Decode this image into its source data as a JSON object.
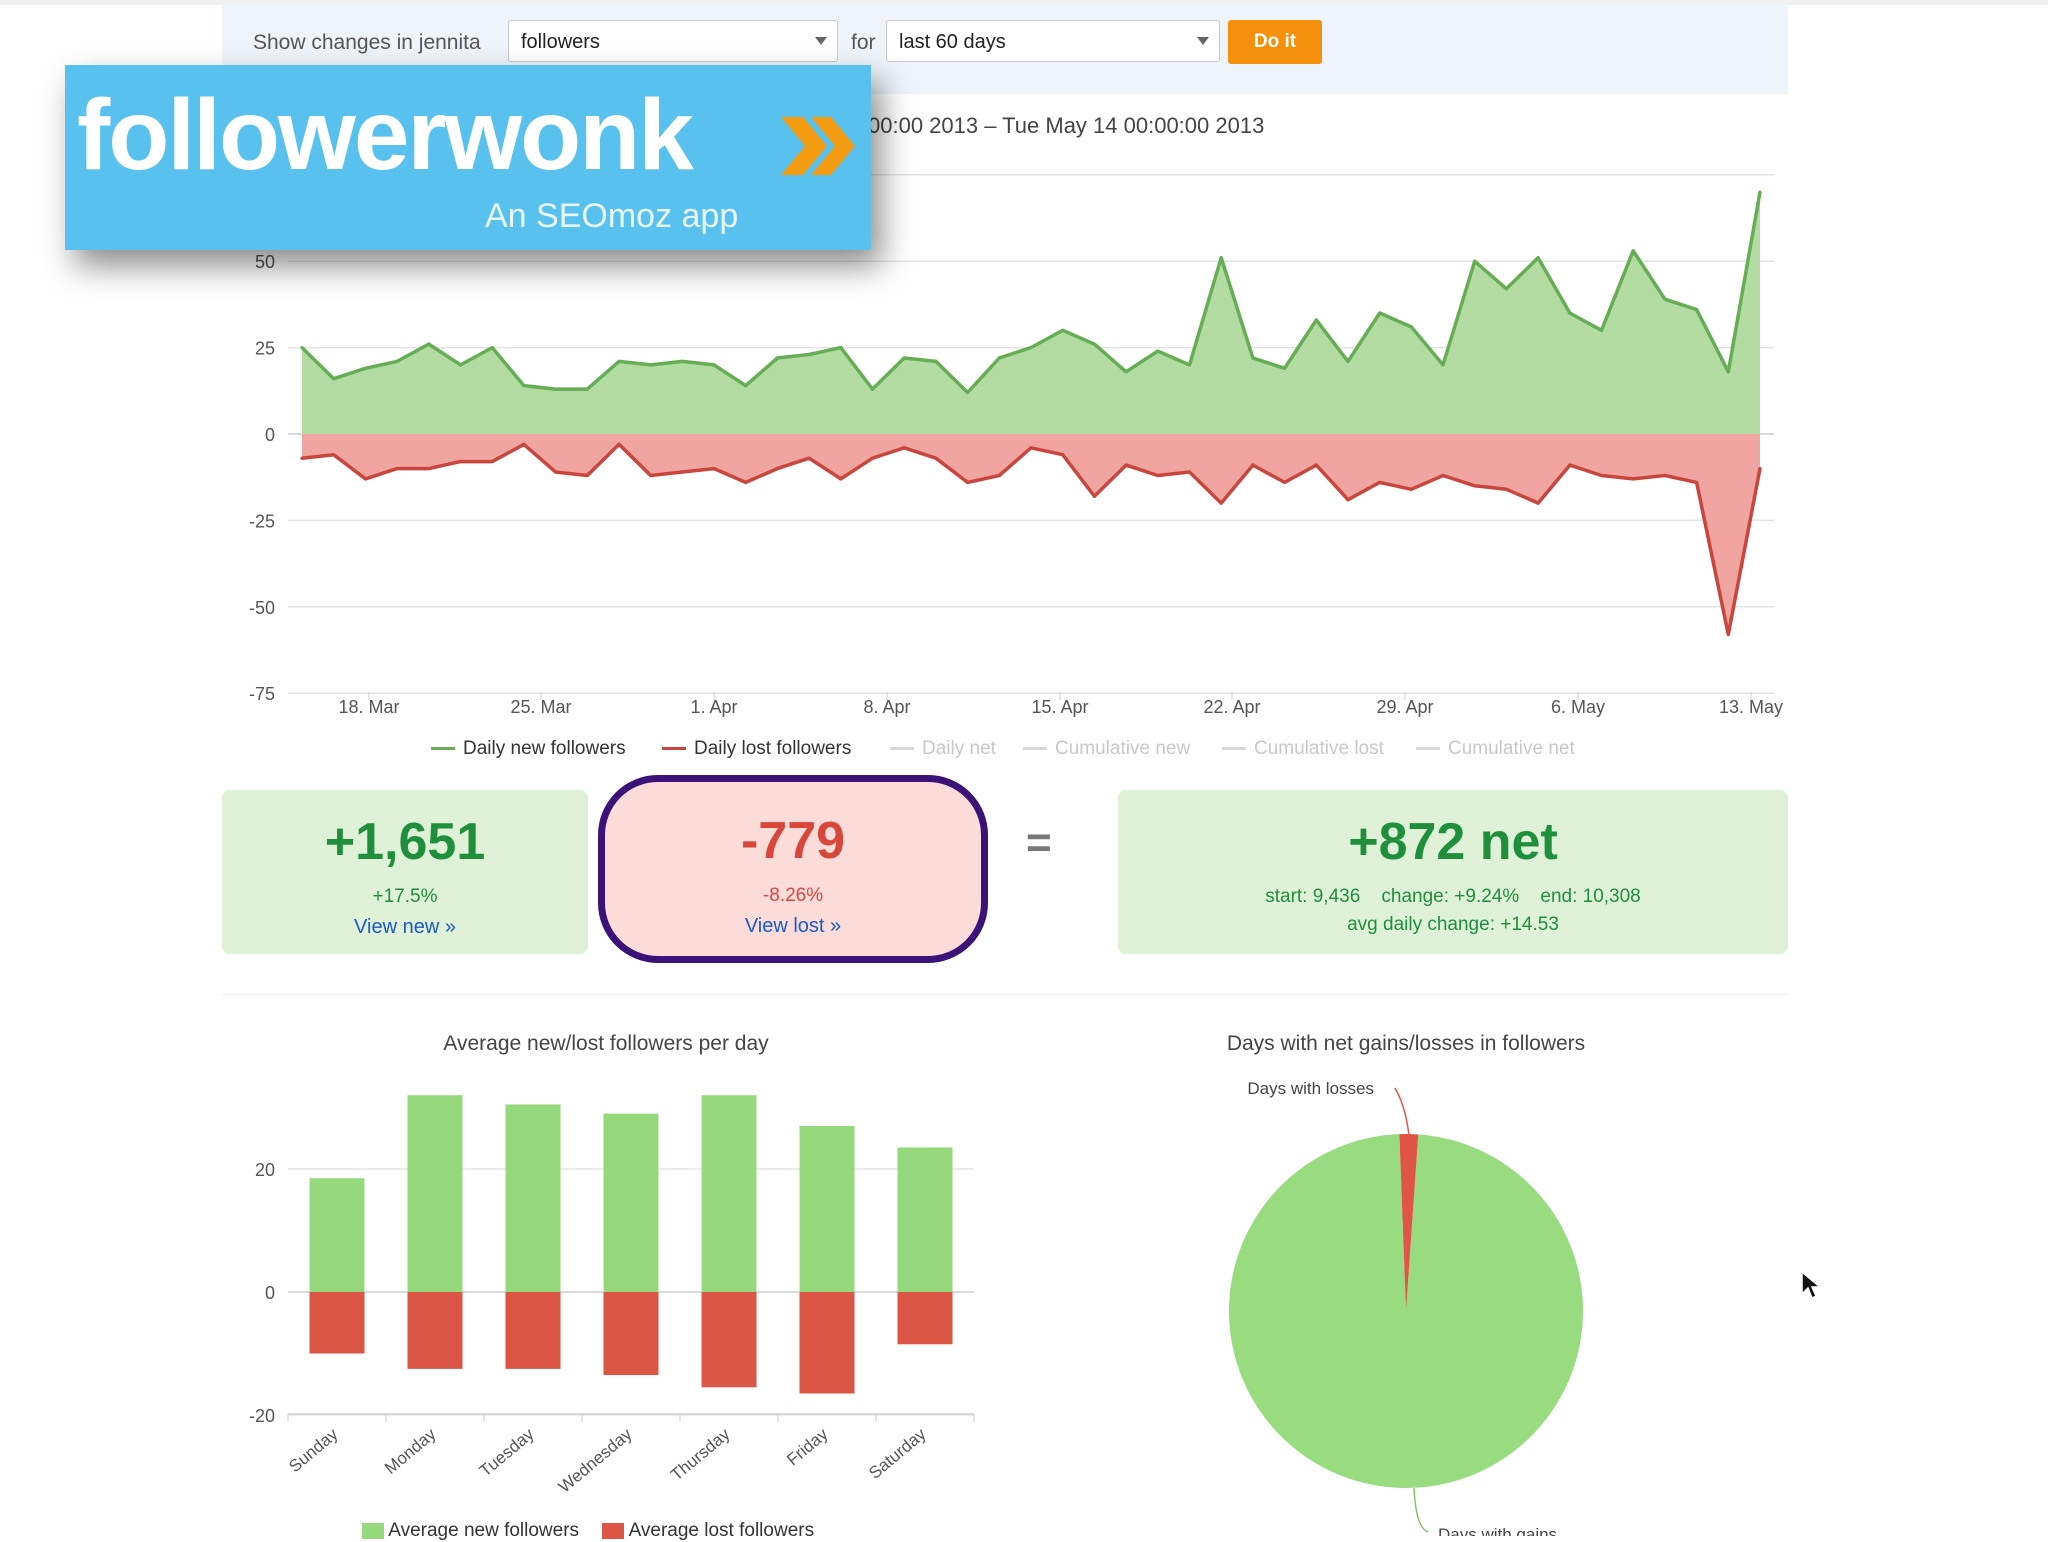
{
  "controls": {
    "prefix_label": "Show changes in jennita",
    "metric_select_value": "followers",
    "for_label": "for",
    "period_select_value": "last 60 days",
    "submit_label": "Do it"
  },
  "date_range": "00:00 2013 – Tue May 14 00:00:00 2013",
  "logo": {
    "wordmark": "followerwonk",
    "tagline": "An SEOmoz app",
    "bg_color": "#58c1ee",
    "chevron_color": "#f39c12",
    "icon": "double-chevron-right-icon"
  },
  "colors": {
    "new_area": "#b3dca3",
    "new_line": "#66ad55",
    "lost_area": "#f0a5a0",
    "lost_line": "#c8463d",
    "bar_green": "#95d97c",
    "bar_red": "#dc5646",
    "pie_green": "#98dc7f",
    "pie_red": "#e05545",
    "positive_text": "#1f8f3c",
    "negative_text": "#d9473c",
    "highlight_ring": "#3b1277"
  },
  "chart_data": [
    {
      "type": "area",
      "title": "",
      "x_ticks": [
        "18. Mar",
        "25. Mar",
        "1. Apr",
        "8. Apr",
        "15. Apr",
        "22. Apr",
        "29. Apr",
        "6. May",
        "13. May"
      ],
      "y_ticks": [
        50,
        25,
        0,
        -25,
        -50,
        -75
      ],
      "ylim": [
        -75,
        75
      ],
      "x_start": "2013-03-15",
      "series": [
        {
          "name": "Daily new followers",
          "values": [
            25,
            16,
            19,
            21,
            26,
            20,
            25,
            14,
            13,
            13,
            21,
            20,
            21,
            20,
            14,
            22,
            23,
            25,
            13,
            22,
            21,
            12,
            22,
            25,
            30,
            26,
            18,
            24,
            20,
            51,
            22,
            19,
            33,
            21,
            35,
            31,
            20,
            50,
            42,
            51,
            35,
            30,
            53,
            39,
            36,
            18,
            70
          ]
        },
        {
          "name": "Daily lost followers",
          "values": [
            -7,
            -6,
            -13,
            -10,
            -10,
            -8,
            -8,
            -3,
            -11,
            -12,
            -3,
            -12,
            -11,
            -10,
            -14,
            -10,
            -7,
            -13,
            -7,
            -4,
            -7,
            -14,
            -12,
            -4,
            -6,
            -18,
            -9,
            -12,
            -11,
            -20,
            -9,
            -14,
            -9,
            -19,
            -14,
            -16,
            -12,
            -15,
            -16,
            -20,
            -9,
            -12,
            -13,
            -12,
            -14,
            -58,
            -10
          ]
        }
      ],
      "legend": [
        "Daily new followers",
        "Daily lost followers",
        "Daily net",
        "Cumulative new",
        "Cumulative lost",
        "Cumulative net"
      ],
      "legend_placement": "bottom-center",
      "grid": true
    },
    {
      "type": "bar",
      "title": "Average new/lost followers per day",
      "categories": [
        "Sunday",
        "Monday",
        "Tuesday",
        "Wednesday",
        "Thursday",
        "Friday",
        "Saturday"
      ],
      "y_ticks": [
        20,
        0,
        -20
      ],
      "ylim": [
        -20,
        32
      ],
      "series": [
        {
          "name": "Average new followers",
          "values": [
            18.5,
            32,
            30.5,
            29,
            32,
            27,
            23.5
          ]
        },
        {
          "name": "Average lost followers",
          "values": [
            -10,
            -12.5,
            -12.5,
            -13.5,
            -15.5,
            -16.5,
            -8.5
          ]
        }
      ],
      "legend_placement": "bottom-left"
    },
    {
      "type": "pie",
      "title": "Days with net gains/losses in followers",
      "slices": [
        {
          "label": "Days with losses",
          "value": 1.7
        },
        {
          "label": "Days with gains",
          "value": 98.3
        }
      ]
    }
  ],
  "summary": {
    "new_count": "+1,651",
    "new_pct": "+17.5%",
    "new_link": "View new »",
    "lost_count": "-779",
    "lost_pct": "-8.26%",
    "lost_link": "View lost »",
    "equals": "=",
    "net_count": "+872 net",
    "net_line1": "start: 9,436    change: +9.24%    end: 10,308",
    "net_line2": "avg daily change: +14.53"
  }
}
